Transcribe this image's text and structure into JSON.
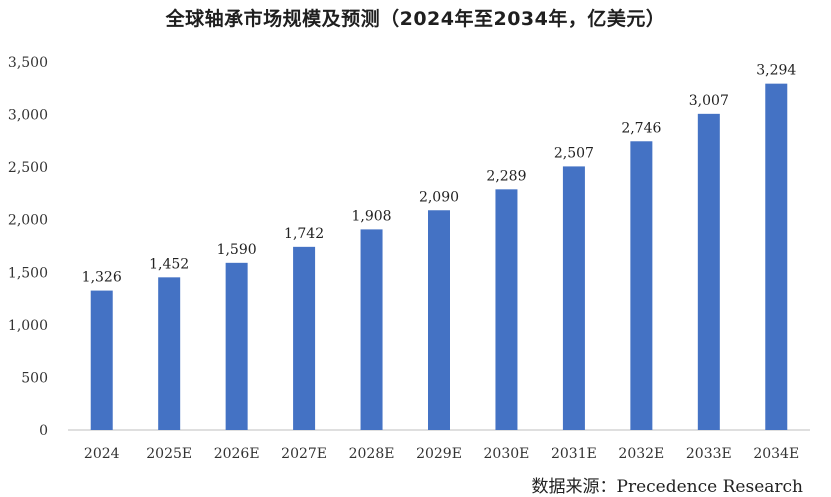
{
  "title": "全球轴承市场规模及预测（2024年至2034年，亿美元）",
  "source": "数据来源：Precedence Research",
  "chart_data": {
    "type": "bar",
    "title": "全球轴承市场规模及预测（2024年至2034年，亿美元）",
    "categories": [
      "2024",
      "2025E",
      "2026E",
      "2027E",
      "2028E",
      "2029E",
      "2030E",
      "2031E",
      "2032E",
      "2033E",
      "2034E"
    ],
    "values": [
      1326,
      1452,
      1590,
      1742,
      1908,
      2090,
      2289,
      2507,
      2746,
      3007,
      3294
    ],
    "value_labels": [
      "1,326",
      "1,452",
      "1,590",
      "1,742",
      "1,908",
      "2,090",
      "2,289",
      "2,507",
      "2,746",
      "3,007",
      "3,294"
    ],
    "y_ticks": [
      0,
      500,
      1000,
      1500,
      2000,
      2500,
      3000,
      3500
    ],
    "y_tick_labels": [
      "0",
      "500",
      "1,000",
      "1,500",
      "2,000",
      "2,500",
      "3,000",
      "3,500"
    ],
    "ylim": [
      0,
      3500
    ],
    "grid": false,
    "legend": "none",
    "bar_color": "#4472C4"
  }
}
